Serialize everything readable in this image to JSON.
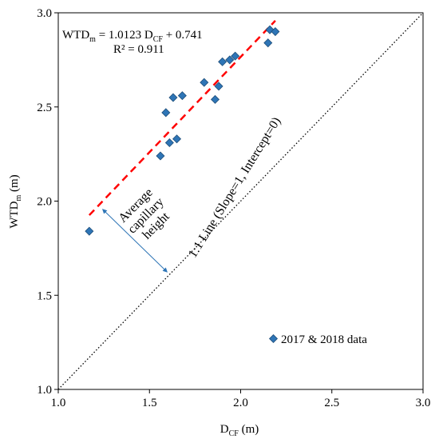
{
  "chart_data": {
    "type": "scatter",
    "xlabel": {
      "main": "D",
      "sub": "CF",
      "unit": " (m)"
    },
    "ylabel": {
      "main": "WTD",
      "sub": "m",
      "unit": " (m)"
    },
    "xlim": [
      1.0,
      3.0
    ],
    "ylim": [
      1.0,
      3.0
    ],
    "xticks": [
      "1.0",
      "1.5",
      "2.0",
      "2.5",
      "3.0"
    ],
    "yticks": [
      "1.0",
      "1.5",
      "2.0",
      "2.5",
      "3.0"
    ],
    "grid": false,
    "legend_position": "bottom-right",
    "series": [
      {
        "name": "2017 & 2018 data",
        "color": "#2e75b6",
        "marker": "diamond",
        "x": [
          1.17,
          1.56,
          1.59,
          1.61,
          1.63,
          1.65,
          1.68,
          1.8,
          1.86,
          1.88,
          1.9,
          1.94,
          1.97,
          2.15,
          2.16,
          2.19
        ],
        "y": [
          1.84,
          2.24,
          2.47,
          2.31,
          2.55,
          2.33,
          2.56,
          2.63,
          2.54,
          2.61,
          2.74,
          2.75,
          2.77,
          2.84,
          2.91,
          2.9
        ]
      }
    ],
    "regression": {
      "color": "#ff0000",
      "style": "dashed",
      "slope": 1.0123,
      "intercept": 0.741,
      "x_range": [
        1.17,
        2.19
      ],
      "equation": {
        "lhs_main": "WTD",
        "lhs_sub": "m",
        "mid": " = 1.0123 D",
        "mid_sub": "CF",
        "rhs": " + 0.741"
      },
      "r2": "R² = 0.911"
    },
    "identity_line": {
      "color": "#000000",
      "style": "dotted",
      "label": "1:1 Line (Slope=1, Intercept=0)"
    },
    "annotations": {
      "capillary_label": [
        "Average",
        "capillary",
        "height"
      ],
      "arrow_color": "#2e75b6",
      "arrow_from": [
        1.25,
        1.95
      ],
      "arrow_to": [
        1.59,
        1.63
      ]
    }
  }
}
